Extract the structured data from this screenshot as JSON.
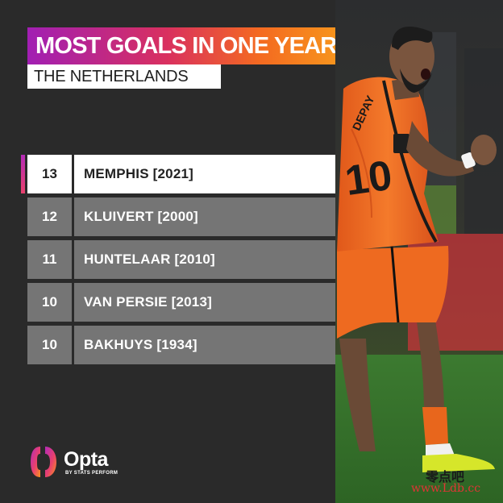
{
  "title": "MOST GOALS IN ONE YEAR",
  "subtitle": "THE NETHERLANDS",
  "rows": [
    {
      "rank": "13",
      "name": "MEMPHIS [2021]",
      "highlighted": true
    },
    {
      "rank": "12",
      "name": "KLUIVERT [2000]",
      "highlighted": false
    },
    {
      "rank": "11",
      "name": "HUNTELAAR [2010]",
      "highlighted": false
    },
    {
      "rank": "10",
      "name": "VAN PERSIE [2013]",
      "highlighted": false
    },
    {
      "rank": "10",
      "name": "BAKHUYS [1934]",
      "highlighted": false
    }
  ],
  "logo": {
    "word": "Opta",
    "sub": "BY STATS PERFORM",
    "icon": "opta-logo-icon"
  },
  "photo": {
    "jersey_name": "DEPAY",
    "jersey_number": "10",
    "icon": "celebrating-player-photo"
  },
  "watermark": {
    "chinese": "零点吧",
    "url": "www.Ldb.cc"
  },
  "colors": {
    "gradient_start": "#a11fb3",
    "gradient_mid": "#d9305f",
    "gradient_end": "#f7941d",
    "row_gray": "#757575",
    "background": "#2a2a2a",
    "jersey_orange": "#f26a1b"
  }
}
